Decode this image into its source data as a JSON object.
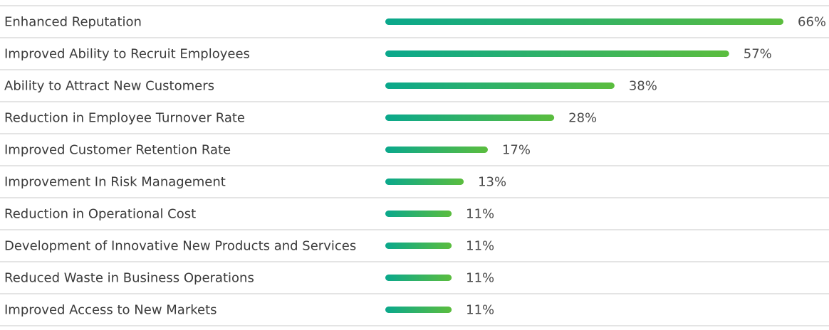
{
  "chart_data": {
    "type": "bar",
    "orientation": "horizontal",
    "categories": [
      "Enhanced Reputation",
      "Improved Ability to Recruit Employees",
      "Ability to Attract New Customers",
      "Reduction in Employee Turnover Rate",
      "Improved Customer Retention Rate",
      "Improvement In Risk Management",
      "Reduction in Operational Cost",
      "Development of Innovative New Products and Services",
      "Reduced Waste in Business Operations",
      "Improved Access to New Markets"
    ],
    "values": [
      66,
      57,
      38,
      28,
      17,
      13,
      11,
      11,
      11,
      11
    ],
    "value_labels": [
      "66%",
      "57%",
      "38%",
      "28%",
      "17%",
      "13%",
      "11%",
      "11%",
      "11%",
      "11%"
    ],
    "title": "",
    "xlabel": "",
    "ylabel": "",
    "grid": false,
    "legend": "none",
    "colors": {
      "bar_start": "#0aa88c",
      "bar_end": "#5bbd3e",
      "separator": "#e4e4e4",
      "label_text": "#3a3a3a",
      "value_text": "#4a4a4a"
    }
  }
}
